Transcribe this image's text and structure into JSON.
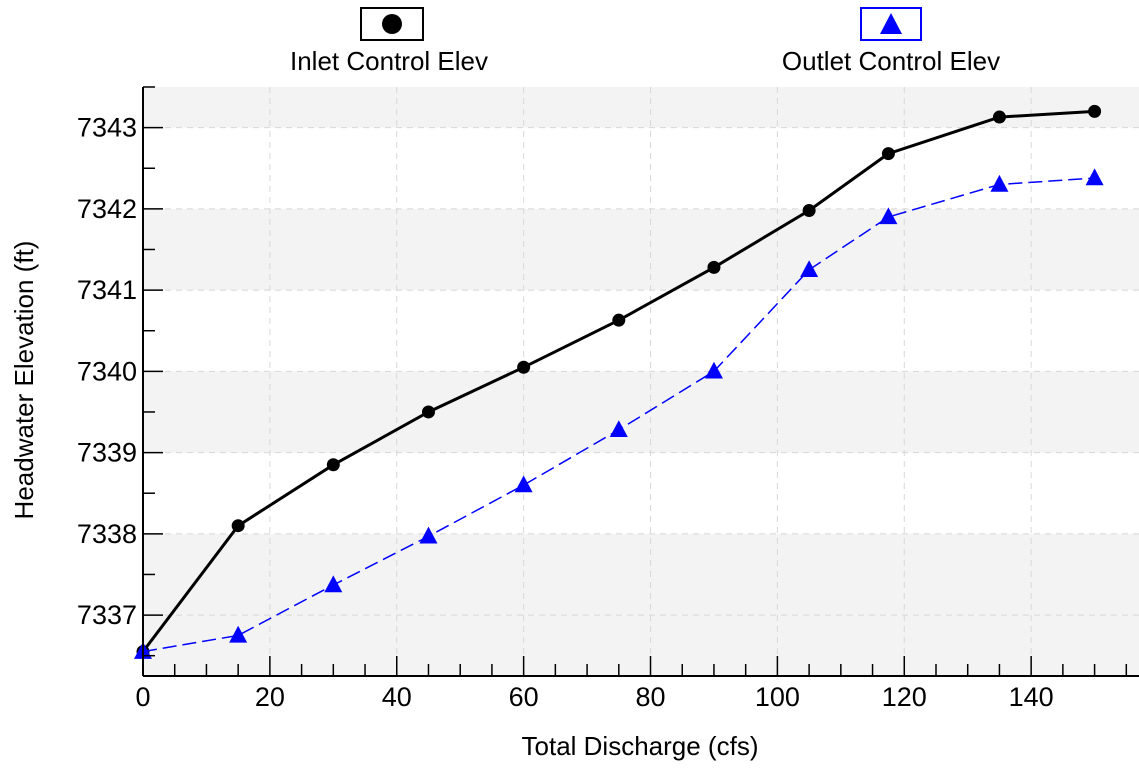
{
  "chart_data": {
    "type": "line",
    "xlabel": "Total Discharge (cfs)",
    "ylabel": "Headwater Elevation (ft)",
    "xlim": [
      0,
      157
    ],
    "ylim": [
      7336.25,
      7343.5
    ],
    "x_ticks": [
      0,
      20,
      40,
      60,
      80,
      100,
      120,
      140
    ],
    "y_ticks": [
      7337,
      7338,
      7339,
      7340,
      7341,
      7342,
      7343
    ],
    "grid": true,
    "legend_position": "top",
    "series": [
      {
        "name": "Inlet Control Elev",
        "color": "#000000",
        "marker": "circle",
        "line_style": "solid",
        "x": [
          0,
          15,
          30,
          45,
          60,
          75,
          90,
          105,
          117.5,
          135,
          150
        ],
        "y": [
          7336.55,
          7338.1,
          7338.85,
          7339.5,
          7340.05,
          7340.63,
          7341.28,
          7341.98,
          7342.68,
          7343.13,
          7343.2
        ]
      },
      {
        "name": "Outlet Control Elev",
        "color": "#0000ff",
        "marker": "triangle",
        "line_style": "dashed",
        "x": [
          0,
          15,
          30,
          45,
          60,
          75,
          90,
          105,
          117.5,
          135,
          150
        ],
        "y": [
          7336.55,
          7336.75,
          7337.37,
          7337.97,
          7338.6,
          7339.28,
          7340.0,
          7341.25,
          7341.9,
          7342.3,
          7342.38
        ]
      }
    ]
  }
}
